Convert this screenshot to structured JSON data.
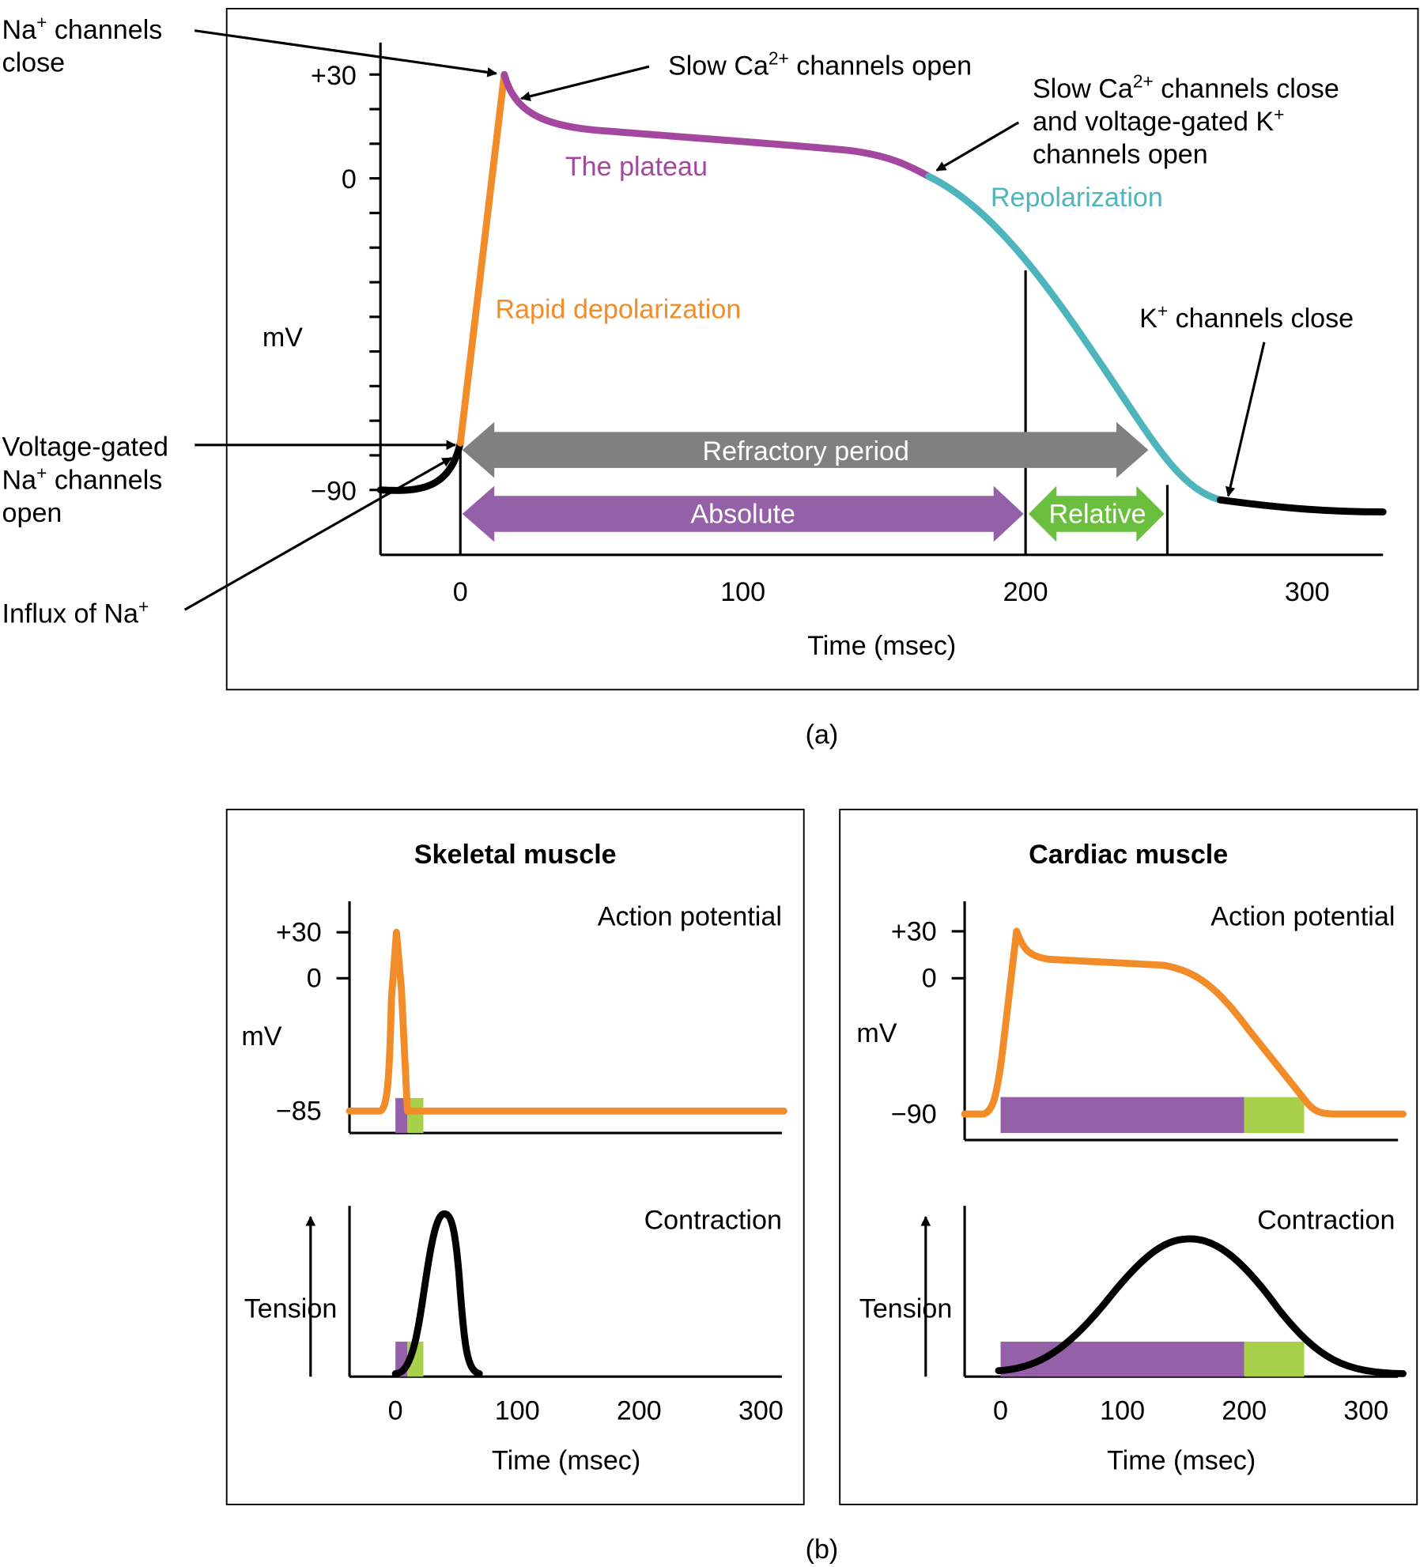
{
  "panel_a": {
    "caption": "(a)",
    "y_label": "mV",
    "x_label": "Time (msec)",
    "y_ticks": [
      "+30",
      "0",
      "−90"
    ],
    "x_ticks": [
      "0",
      "100",
      "200",
      "300"
    ],
    "phases": {
      "rapid_depolarization": "Rapid depolarization",
      "plateau": "The plateau",
      "repolarization": "Repolarization"
    },
    "periods": {
      "refractory": "Refractory period",
      "absolute": "Absolute",
      "relative": "Relative"
    },
    "annotations": {
      "na_close_1": "Na",
      "na_close_sup": "+",
      "na_close_2": " channels",
      "na_close_3": "close",
      "ca_open_1": "Slow Ca",
      "ca_open_sup": "2+",
      "ca_open_2": " channels open",
      "ca_close_1": "Slow Ca",
      "ca_close_sup": "2+",
      "ca_close_2": " channels close",
      "ca_close_3": "and voltage-gated K",
      "ca_close_sup2": "+",
      "ca_close_4": "channels open",
      "k_close_1": "K",
      "k_close_sup": "+",
      "k_close_2": " channels close",
      "vg_1": "Voltage-gated",
      "vg_2": "Na",
      "vg_sup": "+",
      "vg_3": " channels",
      "vg_4": "open",
      "influx_1": "Influx of Na",
      "influx_sup": "+"
    },
    "colors": {
      "depolarization": "#f28c28",
      "plateau": "#a3479f",
      "repolarization": "#4fb5bd",
      "refractory": "#808080",
      "absolute": "#9460a8",
      "relative": "#6abf3f"
    }
  },
  "panel_b": {
    "caption": "(b)",
    "skeletal": {
      "title": "Skeletal muscle",
      "ap_label": "Action potential",
      "contraction_label": "Contraction",
      "y_label": "mV",
      "y_ticks": [
        "+30",
        "0",
        "−85"
      ],
      "tension_label": "Tension",
      "x_ticks": [
        "0",
        "100",
        "200",
        "300"
      ],
      "x_label": "Time (msec)"
    },
    "cardiac": {
      "title": "Cardiac muscle",
      "ap_label": "Action potential",
      "contraction_label": "Contraction",
      "y_label": "mV",
      "y_ticks": [
        "+30",
        "0",
        "−90"
      ],
      "tension_label": "Tension",
      "x_ticks": [
        "0",
        "100",
        "200",
        "300"
      ],
      "x_label": "Time (msec)"
    },
    "colors": {
      "absolute": "#9460a8",
      "relative": "#a8d04a",
      "action_potential": "#f28c28",
      "contraction": "#000000"
    }
  }
}
